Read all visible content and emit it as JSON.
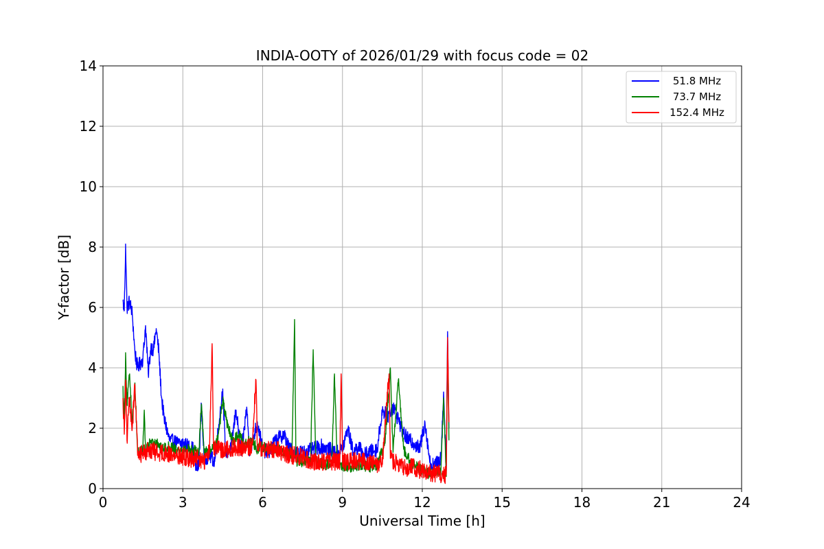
{
  "chart_data": {
    "type": "line",
    "title": "INDIA-OOTY of 2026/01/29 with focus code = 02",
    "xlabel": "Universal Time [h]",
    "ylabel": "Y-factor [dB]",
    "xlim": [
      0,
      24
    ],
    "ylim": [
      0,
      14
    ],
    "xticks": [
      0,
      3,
      6,
      9,
      12,
      15,
      18,
      21,
      24
    ],
    "yticks": [
      0,
      2,
      4,
      6,
      8,
      10,
      12,
      14
    ],
    "grid": true,
    "legend_position": "top-right",
    "series": [
      {
        "name": "51.8 MHz",
        "color": "#0000ff",
        "noise": 0.25,
        "points": [
          [
            0.75,
            6.2
          ],
          [
            0.8,
            5.9
          ],
          [
            0.85,
            8.1
          ],
          [
            0.9,
            6.0
          ],
          [
            1.0,
            6.2
          ],
          [
            1.1,
            5.8
          ],
          [
            1.2,
            4.5
          ],
          [
            1.3,
            4.0
          ],
          [
            1.5,
            4.3
          ],
          [
            1.6,
            5.4
          ],
          [
            1.7,
            3.8
          ],
          [
            1.8,
            4.7
          ],
          [
            1.9,
            4.6
          ],
          [
            2.0,
            5.3
          ],
          [
            2.1,
            4.5
          ],
          [
            2.2,
            3.0
          ],
          [
            2.3,
            2.3
          ],
          [
            2.5,
            1.6
          ],
          [
            2.8,
            1.5
          ],
          [
            3.0,
            1.5
          ],
          [
            3.2,
            1.4
          ],
          [
            3.4,
            1.3
          ],
          [
            3.5,
            0.6
          ],
          [
            3.6,
            0.8
          ],
          [
            3.7,
            2.8
          ],
          [
            3.8,
            1.0
          ],
          [
            4.0,
            1.1
          ],
          [
            4.2,
            0.9
          ],
          [
            4.4,
            2.5
          ],
          [
            4.5,
            3.3
          ],
          [
            4.6,
            1.2
          ],
          [
            4.8,
            1.3
          ],
          [
            5.0,
            2.6
          ],
          [
            5.2,
            1.1
          ],
          [
            5.4,
            2.7
          ],
          [
            5.5,
            1.3
          ],
          [
            5.6,
            1.5
          ],
          [
            5.8,
            2.2
          ],
          [
            6.0,
            1.3
          ],
          [
            6.2,
            1.2
          ],
          [
            6.5,
            1.6
          ],
          [
            6.8,
            1.8
          ],
          [
            7.0,
            1.3
          ],
          [
            7.2,
            1.2
          ],
          [
            7.4,
            1.2
          ],
          [
            7.6,
            1.2
          ],
          [
            7.9,
            1.3
          ],
          [
            8.2,
            1.4
          ],
          [
            8.5,
            1.3
          ],
          [
            8.8,
            1.2
          ],
          [
            9.0,
            1.3
          ],
          [
            9.2,
            2.0
          ],
          [
            9.4,
            1.2
          ],
          [
            9.6,
            1.4
          ],
          [
            9.8,
            1.1
          ],
          [
            10.0,
            1.2
          ],
          [
            10.3,
            1.3
          ],
          [
            10.5,
            2.6
          ],
          [
            10.7,
            2.4
          ],
          [
            10.9,
            2.7
          ],
          [
            11.1,
            2.3
          ],
          [
            11.3,
            1.8
          ],
          [
            11.5,
            1.6
          ],
          [
            11.7,
            1.5
          ],
          [
            11.9,
            1.3
          ],
          [
            12.1,
            2.2
          ],
          [
            12.3,
            0.8
          ],
          [
            12.5,
            0.8
          ],
          [
            12.7,
            1.0
          ],
          [
            12.8,
            3.2
          ],
          [
            12.9,
            0.6
          ],
          [
            12.95,
            5.2
          ],
          [
            13.0,
            2.0
          ]
        ]
      },
      {
        "name": "73.7 MHz",
        "color": "#008000",
        "noise": 0.18,
        "points": [
          [
            0.75,
            3.4
          ],
          [
            0.8,
            2.2
          ],
          [
            0.85,
            4.5
          ],
          [
            0.9,
            2.8
          ],
          [
            1.0,
            3.8
          ],
          [
            1.1,
            2.2
          ],
          [
            1.2,
            3.5
          ],
          [
            1.3,
            1.2
          ],
          [
            1.5,
            1.3
          ],
          [
            1.55,
            2.6
          ],
          [
            1.6,
            1.2
          ],
          [
            1.8,
            1.6
          ],
          [
            1.9,
            1.4
          ],
          [
            2.0,
            1.6
          ],
          [
            2.2,
            1.3
          ],
          [
            2.5,
            1.4
          ],
          [
            2.8,
            1.3
          ],
          [
            3.0,
            1.3
          ],
          [
            3.3,
            1.3
          ],
          [
            3.6,
            1.2
          ],
          [
            3.7,
            2.8
          ],
          [
            3.8,
            1.3
          ],
          [
            4.0,
            1.2
          ],
          [
            4.3,
            1.6
          ],
          [
            4.5,
            2.9
          ],
          [
            4.7,
            2.0
          ],
          [
            4.9,
            1.6
          ],
          [
            5.1,
            1.8
          ],
          [
            5.3,
            1.5
          ],
          [
            5.6,
            1.6
          ],
          [
            5.8,
            1.3
          ],
          [
            6.0,
            1.4
          ],
          [
            6.3,
            1.3
          ],
          [
            6.6,
            1.3
          ],
          [
            6.9,
            1.1
          ],
          [
            7.1,
            1.1
          ],
          [
            7.2,
            5.6
          ],
          [
            7.25,
            0.9
          ],
          [
            7.5,
            0.9
          ],
          [
            7.8,
            0.9
          ],
          [
            7.9,
            4.6
          ],
          [
            8.0,
            0.9
          ],
          [
            8.3,
            0.8
          ],
          [
            8.6,
            0.8
          ],
          [
            8.7,
            3.8
          ],
          [
            8.8,
            0.8
          ],
          [
            9.1,
            0.7
          ],
          [
            9.4,
            0.7
          ],
          [
            9.7,
            0.8
          ],
          [
            10.0,
            0.7
          ],
          [
            10.3,
            0.8
          ],
          [
            10.6,
            1.5
          ],
          [
            10.8,
            4.0
          ],
          [
            10.9,
            1.2
          ],
          [
            11.1,
            3.6
          ],
          [
            11.3,
            1.3
          ],
          [
            11.6,
            0.8
          ],
          [
            11.9,
            0.7
          ],
          [
            12.2,
            0.5
          ],
          [
            12.5,
            0.5
          ],
          [
            12.7,
            0.6
          ],
          [
            12.8,
            3.0
          ],
          [
            12.9,
            0.4
          ],
          [
            12.95,
            4.8
          ],
          [
            13.0,
            1.6
          ]
        ]
      },
      {
        "name": "152.4 MHz",
        "color": "#ff0000",
        "noise": 0.3,
        "points": [
          [
            0.75,
            3.0
          ],
          [
            0.8,
            1.8
          ],
          [
            0.85,
            3.6
          ],
          [
            0.9,
            1.6
          ],
          [
            1.0,
            3.0
          ],
          [
            1.1,
            2.0
          ],
          [
            1.2,
            3.4
          ],
          [
            1.3,
            1.1
          ],
          [
            1.5,
            1.2
          ],
          [
            1.8,
            1.3
          ],
          [
            2.0,
            1.2
          ],
          [
            2.3,
            1.2
          ],
          [
            2.6,
            1.1
          ],
          [
            2.9,
            1.1
          ],
          [
            3.2,
            1.0
          ],
          [
            3.5,
            1.0
          ],
          [
            3.8,
            0.9
          ],
          [
            4.0,
            1.2
          ],
          [
            4.1,
            4.8
          ],
          [
            4.15,
            1.3
          ],
          [
            4.4,
            1.3
          ],
          [
            4.7,
            1.3
          ],
          [
            5.0,
            1.4
          ],
          [
            5.3,
            1.3
          ],
          [
            5.6,
            1.4
          ],
          [
            5.75,
            3.6
          ],
          [
            5.8,
            1.4
          ],
          [
            6.0,
            1.3
          ],
          [
            6.2,
            1.3
          ],
          [
            6.5,
            1.3
          ],
          [
            6.8,
            1.2
          ],
          [
            7.0,
            1.1
          ],
          [
            7.3,
            1.1
          ],
          [
            7.6,
            1.0
          ],
          [
            7.9,
            0.9
          ],
          [
            8.2,
            0.9
          ],
          [
            8.5,
            0.9
          ],
          [
            8.9,
            0.9
          ],
          [
            8.95,
            3.8
          ],
          [
            9.0,
            0.9
          ],
          [
            9.3,
            0.9
          ],
          [
            9.6,
            0.9
          ],
          [
            9.9,
            0.9
          ],
          [
            10.2,
            0.8
          ],
          [
            10.5,
            0.8
          ],
          [
            10.75,
            3.8
          ],
          [
            10.8,
            1.0
          ],
          [
            11.1,
            0.8
          ],
          [
            11.4,
            0.7
          ],
          [
            11.7,
            0.7
          ],
          [
            12.0,
            0.6
          ],
          [
            12.3,
            0.5
          ],
          [
            12.6,
            0.5
          ],
          [
            12.8,
            0.4
          ],
          [
            12.9,
            0.5
          ],
          [
            12.95,
            5.0
          ],
          [
            13.0,
            2.2
          ]
        ]
      }
    ]
  }
}
